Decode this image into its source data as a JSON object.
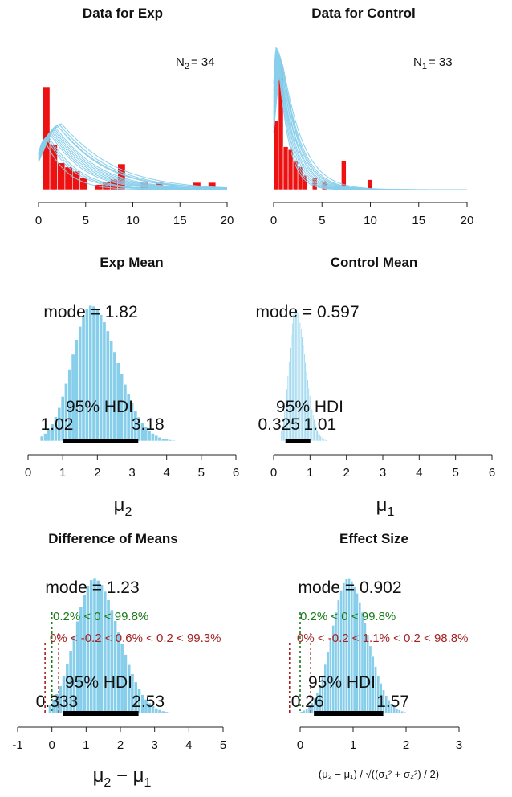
{
  "colors": {
    "data_bar": "#ee1111",
    "curve": "#87ceeb",
    "posterior_bar": "#87ceeb",
    "hdi_bar": "#000000",
    "compare_text": "#1a7a1a",
    "rope_text": "#a52222"
  },
  "chart_data": [
    {
      "id": "data-exp",
      "type": "bar",
      "title": "Data for Exp",
      "n_label": "N",
      "n_sub": "2",
      "n_value": "= 34",
      "xlim": [
        0,
        20
      ],
      "xticks": [
        "0",
        "5",
        "10",
        "15",
        "20"
      ],
      "bars": [
        {
          "x0": 0.4,
          "x1": 1.2,
          "freq": 1.0
        },
        {
          "x0": 1.2,
          "x1": 2.0,
          "freq": 0.44
        },
        {
          "x0": 2.0,
          "x1": 2.8,
          "freq": 0.26
        },
        {
          "x0": 2.8,
          "x1": 3.6,
          "freq": 0.22
        },
        {
          "x0": 3.6,
          "x1": 4.4,
          "freq": 0.18
        },
        {
          "x0": 4.4,
          "x1": 5.2,
          "freq": 0.12
        },
        {
          "x0": 6.0,
          "x1": 6.8,
          "freq": 0.05
        },
        {
          "x0": 6.8,
          "x1": 7.6,
          "freq": 0.08
        },
        {
          "x0": 7.6,
          "x1": 8.4,
          "freq": 0.1
        },
        {
          "x0": 8.4,
          "x1": 9.2,
          "freq": 0.25
        },
        {
          "x0": 10.8,
          "x1": 11.6,
          "freq": 0.07
        },
        {
          "x0": 12.4,
          "x1": 13.2,
          "freq": 0.07
        },
        {
          "x0": 16.4,
          "x1": 17.2,
          "freq": 0.07
        },
        {
          "x0": 18.0,
          "x1": 18.8,
          "freq": 0.07
        }
      ],
      "curve_modes": [
        0.6,
        0.8,
        1.0,
        1.2,
        1.4,
        1.6,
        1.8,
        2.0,
        2.2,
        2.4,
        0.9,
        1.3,
        1.7,
        2.1,
        1.5
      ],
      "curve_widths": [
        1.4,
        1.7,
        1.9,
        2.1,
        2.3,
        2.5,
        2.7,
        2.9,
        3.1,
        3.3,
        1.8,
        2.2,
        2.6,
        3.0,
        2.4
      ],
      "curve_heights": [
        0.48,
        0.5,
        0.52,
        0.54,
        0.56,
        0.58,
        0.6,
        0.62,
        0.63,
        0.64,
        0.51,
        0.55,
        0.59,
        0.61,
        0.57
      ],
      "curve_xmax": 20
    },
    {
      "id": "data-control",
      "type": "bar",
      "title": "Data for Control",
      "n_label": "N",
      "n_sub": "1",
      "n_value": "= 33",
      "xlim": [
        0,
        20
      ],
      "xticks": [
        "0",
        "5",
        "10",
        "15",
        "20"
      ],
      "bars": [
        {
          "x0": 0.0,
          "x1": 0.5,
          "freq": 0.48
        },
        {
          "x0": 0.5,
          "x1": 1.0,
          "freq": 0.87
        },
        {
          "x0": 1.0,
          "x1": 1.5,
          "freq": 0.3
        },
        {
          "x0": 1.5,
          "x1": 2.0,
          "freq": 0.28
        },
        {
          "x0": 2.0,
          "x1": 2.5,
          "freq": 0.2
        },
        {
          "x0": 2.5,
          "x1": 3.0,
          "freq": 0.16
        },
        {
          "x0": 3.0,
          "x1": 3.5,
          "freq": 0.1
        },
        {
          "x0": 4.0,
          "x1": 4.5,
          "freq": 0.08
        },
        {
          "x0": 5.0,
          "x1": 5.5,
          "freq": 0.06
        },
        {
          "x0": 7.0,
          "x1": 7.5,
          "freq": 0.2
        },
        {
          "x0": 9.7,
          "x1": 10.2,
          "freq": 0.07
        }
      ],
      "curve_modes": [
        0.3,
        0.4,
        0.5,
        0.6,
        0.7,
        0.8,
        0.9,
        0.45,
        0.55,
        0.65,
        0.75,
        0.35
      ],
      "curve_widths": [
        0.7,
        0.8,
        0.9,
        1.0,
        1.1,
        1.2,
        1.3,
        0.85,
        0.95,
        1.05,
        1.15,
        0.75
      ],
      "curve_heights": [
        1.0,
        0.98,
        0.96,
        0.95,
        0.93,
        0.9,
        0.88,
        0.97,
        0.94,
        0.92,
        0.91,
        0.99
      ],
      "curve_xmax": 20
    },
    {
      "id": "exp-mean",
      "type": "histogram",
      "title": "Exp Mean",
      "xlabel": "μ",
      "xlabel_sub": "2",
      "xlim": [
        0,
        6
      ],
      "xticks": [
        "0",
        "1",
        "2",
        "3",
        "4",
        "5",
        "6"
      ],
      "mode_label": "mode = 1.82",
      "mode": 1.82,
      "sd": 0.55,
      "skew": 1.35,
      "bin_width": 0.1,
      "hist_range": [
        0.35,
        5.2
      ],
      "hdi_label": "95% HDI",
      "hdi": [
        1.02,
        3.18
      ],
      "hdi_low_label": "1.02",
      "hdi_high_label": "3.18"
    },
    {
      "id": "control-mean",
      "type": "histogram",
      "title": "Control Mean",
      "xlabel": "μ",
      "xlabel_sub": "1",
      "xlim": [
        0,
        6
      ],
      "xticks": [
        "0",
        "1",
        "2",
        "3",
        "4",
        "5",
        "6"
      ],
      "mode_label": "mode = 0.597",
      "mode": 0.597,
      "sd": 0.17,
      "skew": 1.6,
      "bin_width": 0.03,
      "hist_range": [
        0.2,
        1.7
      ],
      "hdi_label": "95% HDI",
      "hdi": [
        0.325,
        1.01
      ],
      "hdi_low_label": "0.325",
      "hdi_high_label": "1.01"
    },
    {
      "id": "diff-means",
      "type": "histogram",
      "title": "Difference of Means",
      "xlabel": "μ",
      "xlabel_sub_a": "2",
      "xlabel_mid": " − μ",
      "xlabel_sub_b": "1",
      "xlim": [
        -1,
        5
      ],
      "xticks": [
        "-1",
        "0",
        "1",
        "2",
        "3",
        "4",
        "5"
      ],
      "mode_label": "mode = 1.23",
      "mode": 1.23,
      "sd": 0.55,
      "skew": 1.3,
      "bin_width": 0.1,
      "hist_range": [
        -0.1,
        4.5
      ],
      "hdi_label": "95% HDI",
      "hdi": [
        0.333,
        2.53
      ],
      "hdi_low_label": "0.333",
      "hdi_high_label": "2.53",
      "compare_text": "0.2% < 0 < 99.8%",
      "compare_value": 0,
      "rope_text": "0% < -0.2 < 0.6% < 0.2 < 99.3%",
      "rope": [
        -0.2,
        0.2
      ]
    },
    {
      "id": "effect-size",
      "type": "histogram",
      "title": "Effect Size",
      "xlabel_formula": "(μ₂ − μ₁) / √((σ₁² + σ₂²) / 2)",
      "xlim": [
        0,
        3
      ],
      "xticks": [
        "0",
        "1",
        "2",
        "3"
      ],
      "mode_label": "mode = 0.902",
      "mode": 0.902,
      "sd": 0.3,
      "skew": 1.2,
      "bin_width": 0.05,
      "hist_range": [
        0.0,
        2.3
      ],
      "hdi_label": "95% HDI",
      "hdi": [
        0.26,
        1.57
      ],
      "hdi_low_label": "0.26",
      "hdi_high_label": "1.57",
      "compare_text": "0.2% < 0 < 99.8%",
      "compare_value": 0,
      "rope_text": "0% < -0.2 < 1.1% < 0.2 < 98.8%",
      "rope": [
        -0.2,
        0.2
      ]
    }
  ]
}
